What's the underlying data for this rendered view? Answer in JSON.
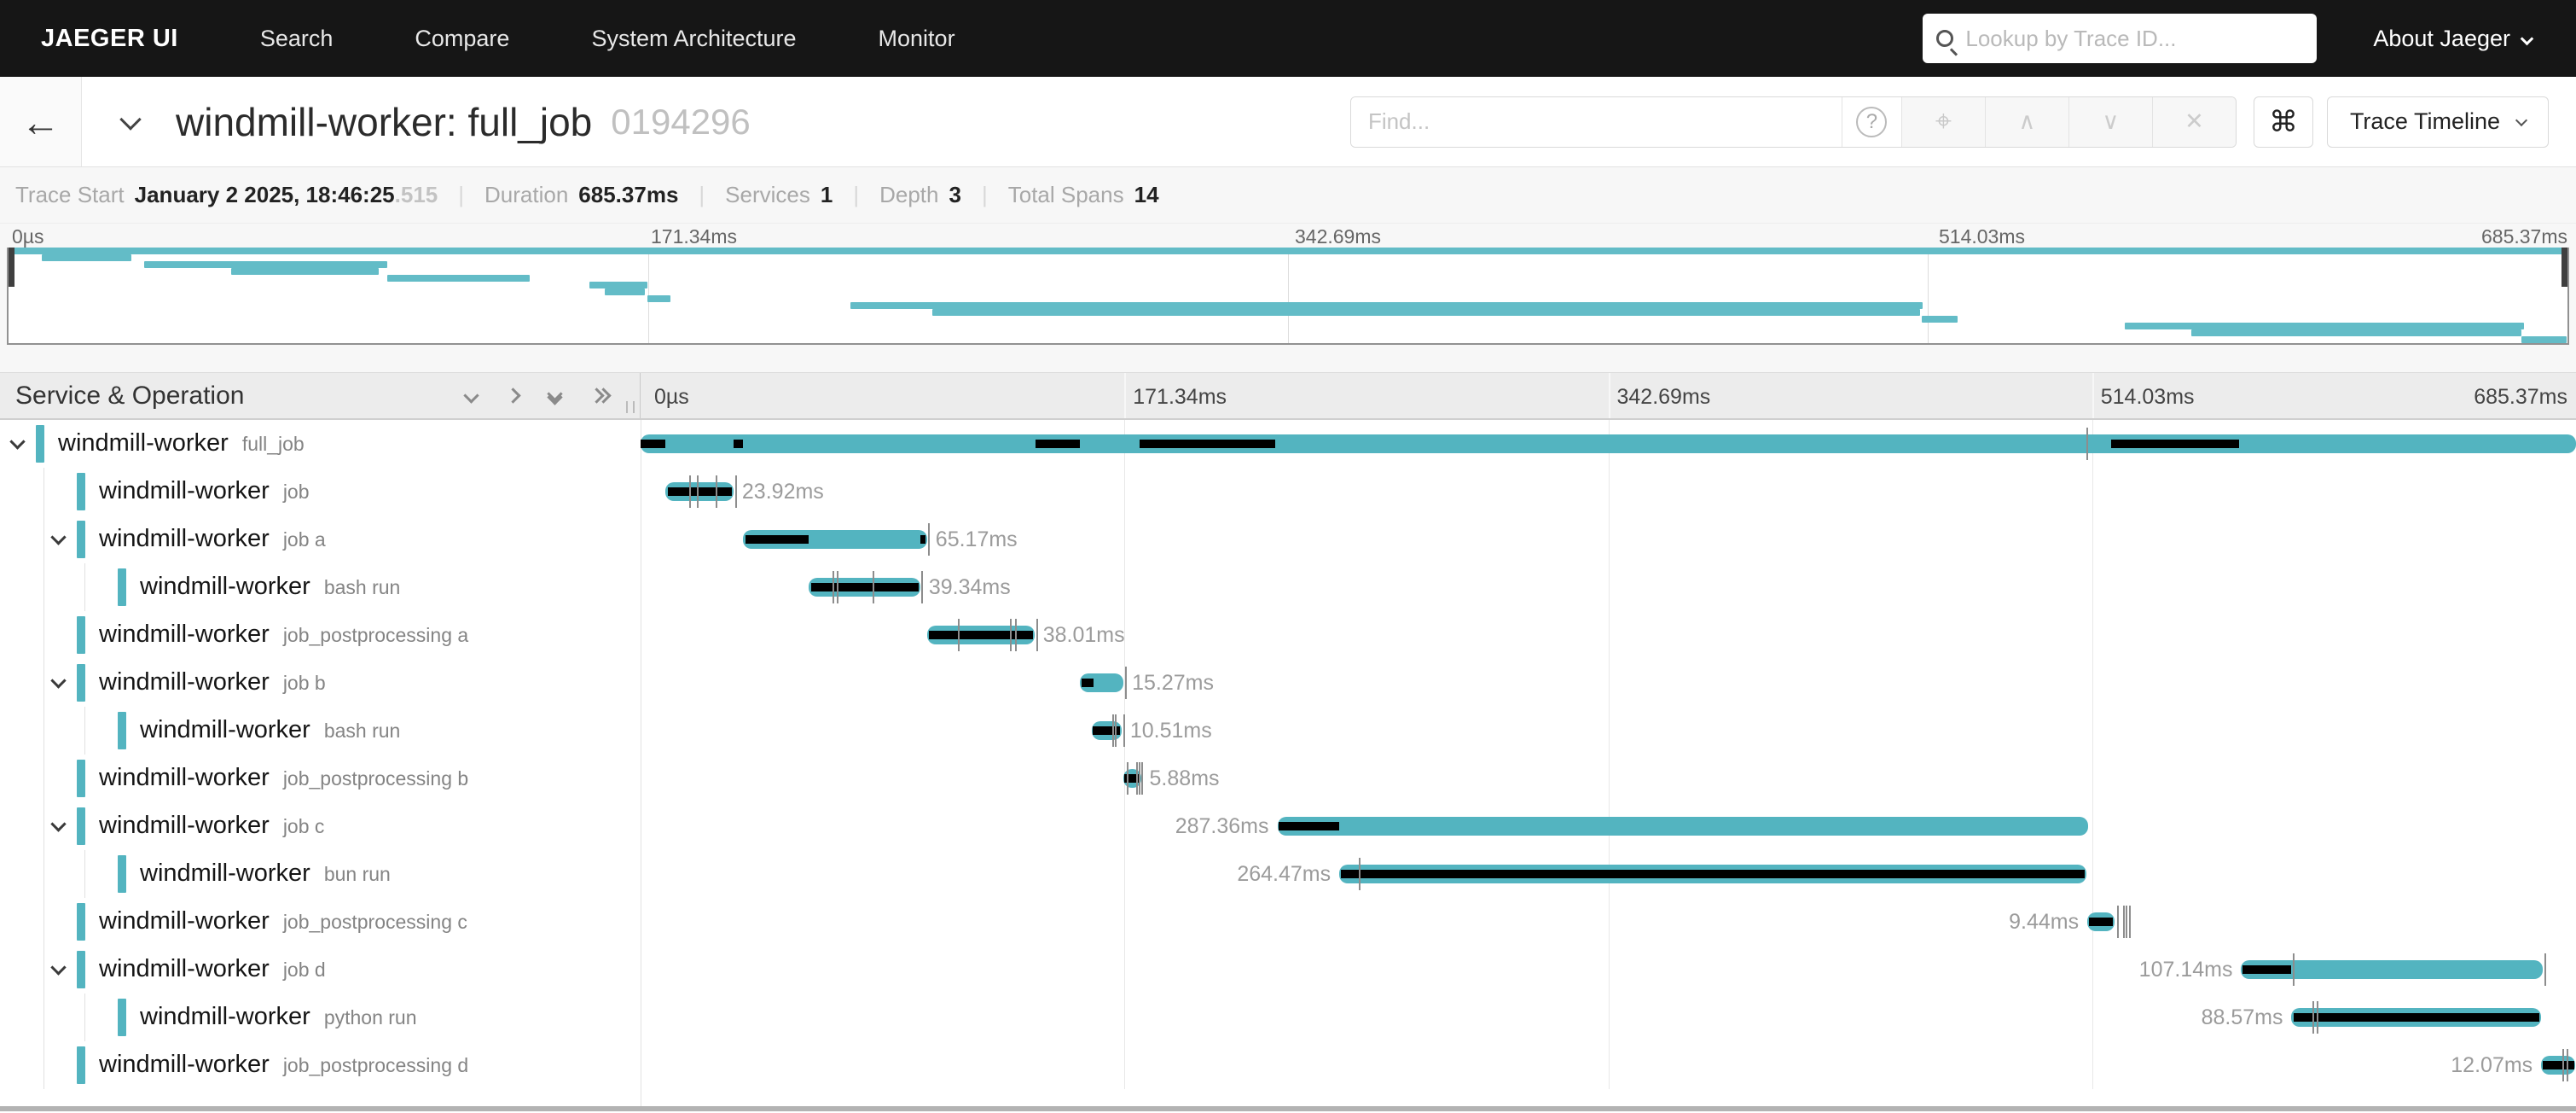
{
  "colors": {
    "accent": "#53b4c0",
    "mini_accent": "#63bcc7",
    "critical": "#000000"
  },
  "nav": {
    "brand": "JAEGER UI",
    "items": [
      "Search",
      "Compare",
      "System Architecture",
      "Monitor"
    ],
    "search_placeholder": "Lookup by Trace ID...",
    "about": "About Jaeger"
  },
  "titlebar": {
    "title": "windmill-worker: full_job",
    "trace_id": "0194296",
    "find_placeholder": "Find...",
    "help_glyph": "?",
    "target_glyph": "⌖",
    "prev_glyph": "∧",
    "next_glyph": "∨",
    "clear_glyph": "✕",
    "shortcut_glyph": "⌘",
    "view_selector": "Trace Timeline",
    "back_glyph": "←"
  },
  "summary": {
    "trace_start_label": "Trace Start",
    "trace_start": "January 2 2025, 18:46:25",
    "trace_start_fraction": ".515",
    "duration_label": "Duration",
    "duration": "685.37ms",
    "services_label": "Services",
    "services": "1",
    "depth_label": "Depth",
    "depth": "3",
    "total_spans_label": "Total Spans",
    "total_spans": "14"
  },
  "timeline": {
    "header_left": "Service & Operation",
    "ticks": [
      "0µs",
      "171.34ms",
      "342.69ms",
      "514.03ms",
      "685.37ms"
    ],
    "tick_positions": [
      0,
      25,
      50,
      75,
      100
    ]
  },
  "spans": [
    {
      "service": "windmill-worker",
      "operation": "full_job",
      "depth": 0,
      "expandable": true,
      "start": 0,
      "width": 100,
      "label": "",
      "label_side": "none",
      "critical": [
        [
          0,
          1.3
        ],
        [
          4.8,
          5.3
        ],
        [
          20.4,
          22.7
        ],
        [
          25.8,
          32.8
        ],
        [
          76.0,
          82.6
        ]
      ],
      "ticks": [
        74.7
      ]
    },
    {
      "service": "windmill-worker",
      "operation": "job",
      "depth": 1,
      "expandable": false,
      "start": 1.3,
      "width": 3.5,
      "label": "23.92ms",
      "label_side": "right",
      "critical": [
        [
          1.4,
          4.7
        ]
      ],
      "ticks": [
        2.5,
        2.9,
        3.9,
        4.9
      ]
    },
    {
      "service": "windmill-worker",
      "operation": "job a",
      "depth": 1,
      "expandable": true,
      "start": 5.3,
      "width": 9.5,
      "label": "65.17ms",
      "label_side": "right",
      "critical": [
        [
          5.4,
          8.7
        ],
        [
          14.45,
          14.72
        ]
      ],
      "ticks": [
        14.85
      ]
    },
    {
      "service": "windmill-worker",
      "operation": "bash run",
      "depth": 2,
      "expandable": false,
      "start": 8.7,
      "width": 5.75,
      "label": "39.34ms",
      "label_side": "right",
      "critical": [
        [
          8.8,
          14.38
        ]
      ],
      "ticks": [
        9.9,
        10.15,
        12.0,
        14.5
      ]
    },
    {
      "service": "windmill-worker",
      "operation": "job_postprocessing a",
      "depth": 1,
      "expandable": false,
      "start": 14.8,
      "width": 5.55,
      "label": "38.01ms",
      "label_side": "right",
      "critical": [
        [
          14.9,
          20.28
        ]
      ],
      "ticks": [
        16.4,
        19.1,
        19.35,
        20.45
      ]
    },
    {
      "service": "windmill-worker",
      "operation": "job b",
      "depth": 1,
      "expandable": true,
      "start": 22.7,
      "width": 2.25,
      "label": "15.27ms",
      "label_side": "right",
      "critical": [
        [
          22.78,
          23.4
        ]
      ],
      "ticks": [
        25.05
      ]
    },
    {
      "service": "windmill-worker",
      "operation": "bash run",
      "depth": 2,
      "expandable": false,
      "start": 23.3,
      "width": 1.55,
      "label": "10.51ms",
      "label_side": "right",
      "critical": [
        [
          23.38,
          24.78
        ]
      ],
      "ticks": [
        24.35,
        24.5,
        24.95
      ]
    },
    {
      "service": "windmill-worker",
      "operation": "job_postprocessing b",
      "depth": 1,
      "expandable": false,
      "start": 24.95,
      "width": 0.9,
      "label": "5.88ms",
      "label_side": "right",
      "critical": [
        [
          25.0,
          25.78
        ]
      ],
      "ticks": [
        25.1,
        25.6,
        25.72,
        25.88
      ]
    },
    {
      "service": "windmill-worker",
      "operation": "job c",
      "depth": 1,
      "expandable": true,
      "start": 32.9,
      "width": 41.9,
      "label": "287.36ms",
      "label_side": "left",
      "critical": [
        [
          32.98,
          36.1
        ]
      ],
      "ticks": []
    },
    {
      "service": "windmill-worker",
      "operation": "bun run",
      "depth": 2,
      "expandable": false,
      "start": 36.1,
      "width": 38.6,
      "label": "264.47ms",
      "label_side": "left",
      "critical": [
        [
          36.2,
          74.62
        ]
      ],
      "ticks": [
        37.1
      ]
    },
    {
      "service": "windmill-worker",
      "operation": "job_postprocessing c",
      "depth": 1,
      "expandable": false,
      "start": 74.75,
      "width": 1.4,
      "label": "9.44ms",
      "label_side": "left",
      "critical": [
        [
          74.82,
          76.08
        ]
      ],
      "ticks": [
        76.3,
        76.6,
        76.75,
        76.92
      ]
    },
    {
      "service": "windmill-worker",
      "operation": "job d",
      "depth": 1,
      "expandable": true,
      "start": 82.7,
      "width": 15.6,
      "label": "107.14ms",
      "label_side": "left",
      "critical": [
        [
          82.78,
          85.3
        ]
      ],
      "ticks": [
        85.35,
        98.35
      ]
    },
    {
      "service": "windmill-worker",
      "operation": "python run",
      "depth": 2,
      "expandable": false,
      "start": 85.3,
      "width": 12.9,
      "label": "88.57ms",
      "label_side": "left",
      "critical": [
        [
          85.4,
          98.12
        ]
      ],
      "ticks": [
        86.4,
        86.58
      ]
    },
    {
      "service": "windmill-worker",
      "operation": "job_postprocessing d",
      "depth": 1,
      "expandable": false,
      "start": 98.2,
      "width": 1.76,
      "label": "12.07ms",
      "label_side": "left",
      "critical": [
        [
          98.28,
          99.9
        ]
      ],
      "ticks": [
        99.3,
        99.5
      ]
    }
  ]
}
